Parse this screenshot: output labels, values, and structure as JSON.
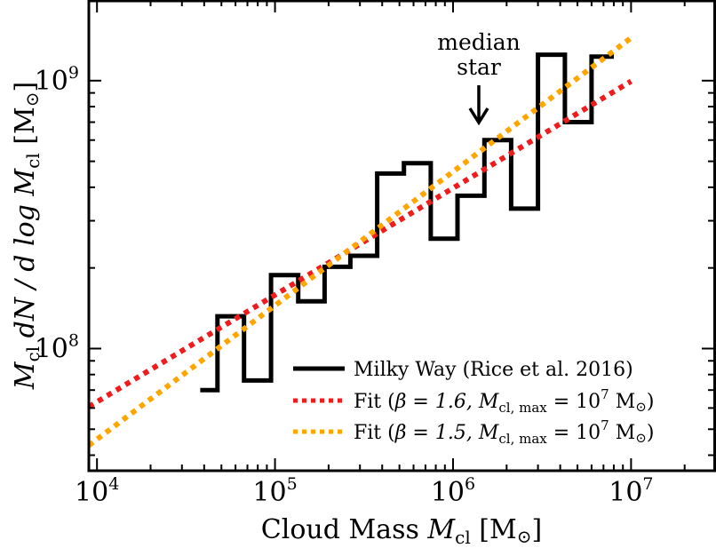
{
  "chart_data": {
    "type": "line",
    "x_scale": "log",
    "y_scale": "log",
    "xlim": [
      9000,
      30000000
    ],
    "ylim": [
      35000000,
      2000000000
    ],
    "x_ticks": [
      10000,
      100000,
      1000000,
      10000000
    ],
    "y_ticks": [
      100000000,
      1000000000
    ],
    "x_tick_labels": [
      {
        "base": "10",
        "exp": "4"
      },
      {
        "base": "10",
        "exp": "5"
      },
      {
        "base": "10",
        "exp": "6"
      },
      {
        "base": "10",
        "exp": "7"
      }
    ],
    "y_tick_labels": [
      {
        "base": "10",
        "exp": "8"
      },
      {
        "base": "10",
        "exp": "9"
      }
    ],
    "xlabel": "Cloud Mass M_cl [M⊙]",
    "ylabel": "M_cl dN / d log M_cl [M⊙]",
    "xlabel_parts": {
      "text": "Cloud Mass ",
      "sym": "M",
      "sub": "cl",
      "unit": " [M",
      "sun": "⊙",
      "close": "]"
    },
    "ylabel_parts": {
      "sym": "M",
      "sub": "cl",
      "mid": " dN / d log ",
      "sym2": "M",
      "sub2": "cl",
      "unit": " [M",
      "sun": "⊙",
      "close": "]"
    },
    "grid": false,
    "legend_position": "bottom-right",
    "series": [
      {
        "name": "Milky Way (Rice et al. 2016)",
        "style": "step",
        "color": "#000000",
        "edges": [
          38000,
          47500,
          67000,
          95000,
          135000,
          190000,
          265000,
          375000,
          530000,
          750000,
          1060000,
          1500000,
          2120000,
          3000000,
          4250000,
          6000000,
          8000000
        ],
        "values": [
          70000000,
          132000000,
          76000000,
          188000000,
          150000000,
          202000000,
          222000000,
          450000000,
          492000000,
          257000000,
          372000000,
          600000000,
          333000000,
          1250000000,
          700000000,
          1230000000
        ]
      },
      {
        "name": "Fit (β = 1.6, M_cl,max = 10^7 M⊙)",
        "style": "dotted",
        "color": "#ee1c1c",
        "x": [
          9000,
          10000000
        ],
        "y": [
          60700000,
          995000000
        ]
      },
      {
        "name": "Fit (β = 1.5, M_cl,max = 10^7 M⊙)",
        "style": "dotted",
        "color": "#ffa500",
        "x": [
          9000,
          10000000
        ],
        "y": [
          43500000,
          1445000000
        ]
      }
    ],
    "legend_entries": [
      {
        "prefix": "Milky Way (Rice et al. 2016)",
        "beta": "",
        "mmax_exp": ""
      },
      {
        "prefix": "Fit (",
        "beta": "β = 1.6, ",
        "mmax_exp": "7"
      },
      {
        "prefix": "Fit (",
        "beta": "β = 1.5, ",
        "mmax_exp": "7"
      }
    ],
    "annotations": [
      {
        "lines": [
          "median",
          "star"
        ],
        "x": 1450000,
        "arrow_tip_y": 535000000
      }
    ]
  }
}
